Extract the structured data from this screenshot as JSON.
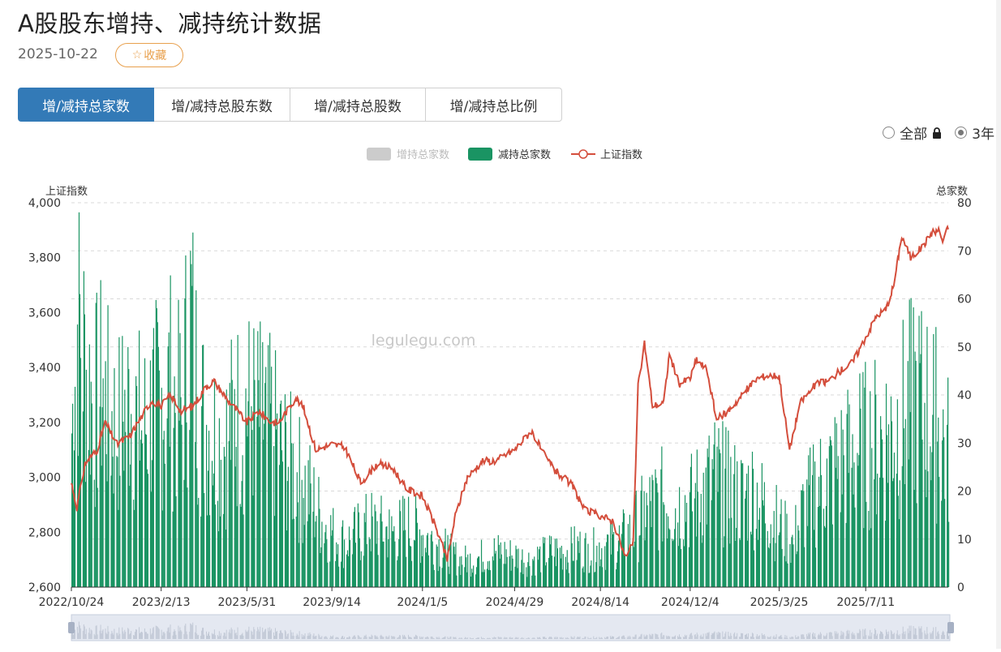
{
  "header": {
    "title": "A股股东增持、减持统计数据",
    "date": "2025-10-22",
    "favorite_label": "收藏"
  },
  "tabs": [
    {
      "label": "增/减持总家数",
      "active": true
    },
    {
      "label": "增/减持总股东数",
      "active": false
    },
    {
      "label": "增/减持总股数",
      "active": false
    },
    {
      "label": "增/减持总比例",
      "active": false
    }
  ],
  "range": {
    "all_label": "全部",
    "three_year_label": "3年",
    "selected": "3年"
  },
  "watermark": "legulegu.com",
  "colors": {
    "accent": "#337ab7",
    "reduce_bar": "#1a9463",
    "increase_bar": "#cccccc",
    "index_line": "#d44e3c",
    "favorite": "#e8a04d"
  },
  "chart_data": {
    "type": "bar+line",
    "left_axis_label": "上证指数",
    "right_axis_label": "总家数",
    "left_ylim": [
      2600,
      4000
    ],
    "left_ticks": [
      "2,600",
      "2,800",
      "3,000",
      "3,200",
      "3,400",
      "3,600",
      "3,800",
      "4,000"
    ],
    "right_ylim": [
      0,
      80
    ],
    "right_ticks": [
      "0",
      "10",
      "20",
      "30",
      "40",
      "50",
      "60",
      "70",
      "80"
    ],
    "x_ticks": [
      "2022/10/24",
      "2023/2/13",
      "2023/5/31",
      "2023/9/14",
      "2024/1/5",
      "2024/4/29",
      "2024/8/14",
      "2024/12/4",
      "2025/3/25",
      "2025/7/11"
    ],
    "x_range": [
      "2022-10-24",
      "2025-10-22"
    ],
    "legend_position": "top-center",
    "series": [
      {
        "name": "增持总家数",
        "type": "bar",
        "visible": false,
        "values": []
      },
      {
        "name": "减持总家数",
        "type": "bar",
        "axis": "right",
        "points": [
          [
            "2022-10-24",
            35
          ],
          [
            "2022-11-01",
            62
          ],
          [
            "2022-11-10",
            50
          ],
          [
            "2022-11-20",
            40
          ],
          [
            "2022-12-01",
            45
          ],
          [
            "2022-12-10",
            38
          ],
          [
            "2022-12-20",
            36
          ],
          [
            "2023-01-05",
            42
          ],
          [
            "2023-01-20",
            35
          ],
          [
            "2023-02-01",
            40
          ],
          [
            "2023-02-13",
            42
          ],
          [
            "2023-02-25",
            45
          ],
          [
            "2023-03-10",
            38
          ],
          [
            "2023-03-20",
            62
          ],
          [
            "2023-04-01",
            40
          ],
          [
            "2023-04-15",
            35
          ],
          [
            "2023-05-01",
            32
          ],
          [
            "2023-05-15",
            38
          ],
          [
            "2023-05-31",
            40
          ],
          [
            "2023-06-15",
            38
          ],
          [
            "2023-07-01",
            35
          ],
          [
            "2023-07-15",
            30
          ],
          [
            "2023-08-01",
            25
          ],
          [
            "2023-08-15",
            22
          ],
          [
            "2023-09-01",
            15
          ],
          [
            "2023-09-14",
            12
          ],
          [
            "2023-10-01",
            10
          ],
          [
            "2023-10-15",
            12
          ],
          [
            "2023-11-01",
            14
          ],
          [
            "2023-11-15",
            13
          ],
          [
            "2023-12-01",
            12
          ],
          [
            "2023-12-15",
            14
          ],
          [
            "2024-01-05",
            12
          ],
          [
            "2024-01-20",
            10
          ],
          [
            "2024-02-05",
            8
          ],
          [
            "2024-02-20",
            6
          ],
          [
            "2024-03-05",
            6
          ],
          [
            "2024-03-20",
            7
          ],
          [
            "2024-04-05",
            8
          ],
          [
            "2024-04-29",
            7
          ],
          [
            "2024-05-15",
            6
          ],
          [
            "2024-06-01",
            7
          ],
          [
            "2024-06-15",
            8
          ],
          [
            "2024-07-01",
            8
          ],
          [
            "2024-07-15",
            9
          ],
          [
            "2024-08-01",
            8
          ],
          [
            "2024-08-14",
            9
          ],
          [
            "2024-09-01",
            10
          ],
          [
            "2024-09-20",
            12
          ],
          [
            "2024-10-01",
            15
          ],
          [
            "2024-10-15",
            18
          ],
          [
            "2024-11-01",
            20
          ],
          [
            "2024-11-15",
            18
          ],
          [
            "2024-12-04",
            19
          ],
          [
            "2024-12-20",
            22
          ],
          [
            "2025-01-05",
            25
          ],
          [
            "2025-01-20",
            22
          ],
          [
            "2025-02-05",
            20
          ],
          [
            "2025-02-20",
            22
          ],
          [
            "2025-03-05",
            18
          ],
          [
            "2025-03-25",
            14
          ],
          [
            "2025-04-10",
            10
          ],
          [
            "2025-04-25",
            18
          ],
          [
            "2025-05-10",
            22
          ],
          [
            "2025-05-25",
            25
          ],
          [
            "2025-06-10",
            28
          ],
          [
            "2025-06-25",
            30
          ],
          [
            "2025-07-11",
            32
          ],
          [
            "2025-07-25",
            33
          ],
          [
            "2025-08-10",
            35
          ],
          [
            "2025-08-25",
            38
          ],
          [
            "2025-09-10",
            42
          ],
          [
            "2025-09-25",
            40
          ],
          [
            "2025-10-10",
            36
          ],
          [
            "2025-10-22",
            30
          ]
        ]
      },
      {
        "name": "上证指数",
        "type": "line",
        "axis": "left",
        "points": [
          [
            "2022-10-24",
            2980
          ],
          [
            "2022-10-31",
            2890
          ],
          [
            "2022-11-10",
            3050
          ],
          [
            "2022-11-25",
            3100
          ],
          [
            "2022-12-05",
            3200
          ],
          [
            "2022-12-20",
            3120
          ],
          [
            "2023-01-05",
            3150
          ],
          [
            "2023-01-15",
            3200
          ],
          [
            "2023-02-01",
            3280
          ],
          [
            "2023-02-13",
            3260
          ],
          [
            "2023-02-25",
            3300
          ],
          [
            "2023-03-10",
            3240
          ],
          [
            "2023-03-25",
            3260
          ],
          [
            "2023-04-10",
            3330
          ],
          [
            "2023-04-20",
            3350
          ],
          [
            "2023-05-05",
            3290
          ],
          [
            "2023-05-31",
            3200
          ],
          [
            "2023-06-15",
            3240
          ],
          [
            "2023-06-30",
            3200
          ],
          [
            "2023-07-10",
            3200
          ],
          [
            "2023-07-31",
            3290
          ],
          [
            "2023-08-10",
            3250
          ],
          [
            "2023-08-25",
            3100
          ],
          [
            "2023-09-14",
            3120
          ],
          [
            "2023-09-30",
            3110
          ],
          [
            "2023-10-20",
            2980
          ],
          [
            "2023-11-10",
            3050
          ],
          [
            "2023-11-30",
            3030
          ],
          [
            "2023-12-15",
            2960
          ],
          [
            "2024-01-05",
            2930
          ],
          [
            "2024-01-20",
            2830
          ],
          [
            "2024-02-05",
            2700
          ],
          [
            "2024-02-15",
            2860
          ],
          [
            "2024-03-01",
            3000
          ],
          [
            "2024-03-20",
            3060
          ],
          [
            "2024-04-05",
            3060
          ],
          [
            "2024-04-29",
            3100
          ],
          [
            "2024-05-20",
            3170
          ],
          [
            "2024-06-05",
            3080
          ],
          [
            "2024-06-20",
            3020
          ],
          [
            "2024-07-10",
            2970
          ],
          [
            "2024-07-25",
            2880
          ],
          [
            "2024-08-14",
            2860
          ],
          [
            "2024-08-30",
            2840
          ],
          [
            "2024-09-15",
            2700
          ],
          [
            "2024-09-24",
            2770
          ],
          [
            "2024-09-30",
            3330
          ],
          [
            "2024-10-08",
            3490
          ],
          [
            "2024-10-18",
            3260
          ],
          [
            "2024-11-01",
            3270
          ],
          [
            "2024-11-08",
            3450
          ],
          [
            "2024-11-20",
            3340
          ],
          [
            "2024-12-04",
            3360
          ],
          [
            "2024-12-12",
            3430
          ],
          [
            "2024-12-25",
            3390
          ],
          [
            "2025-01-06",
            3210
          ],
          [
            "2025-01-20",
            3240
          ],
          [
            "2025-02-10",
            3310
          ],
          [
            "2025-02-25",
            3360
          ],
          [
            "2025-03-10",
            3370
          ],
          [
            "2025-03-25",
            3370
          ],
          [
            "2025-04-07",
            3100
          ],
          [
            "2025-04-20",
            3270
          ],
          [
            "2025-05-10",
            3340
          ],
          [
            "2025-05-25",
            3350
          ],
          [
            "2025-06-10",
            3390
          ],
          [
            "2025-06-25",
            3420
          ],
          [
            "2025-07-11",
            3510
          ],
          [
            "2025-07-25",
            3590
          ],
          [
            "2025-08-05",
            3610
          ],
          [
            "2025-08-15",
            3700
          ],
          [
            "2025-08-25",
            3880
          ],
          [
            "2025-09-05",
            3800
          ],
          [
            "2025-09-20",
            3840
          ],
          [
            "2025-10-01",
            3890
          ],
          [
            "2025-10-10",
            3900
          ],
          [
            "2025-10-15",
            3860
          ],
          [
            "2025-10-22",
            3910
          ]
        ]
      }
    ]
  }
}
